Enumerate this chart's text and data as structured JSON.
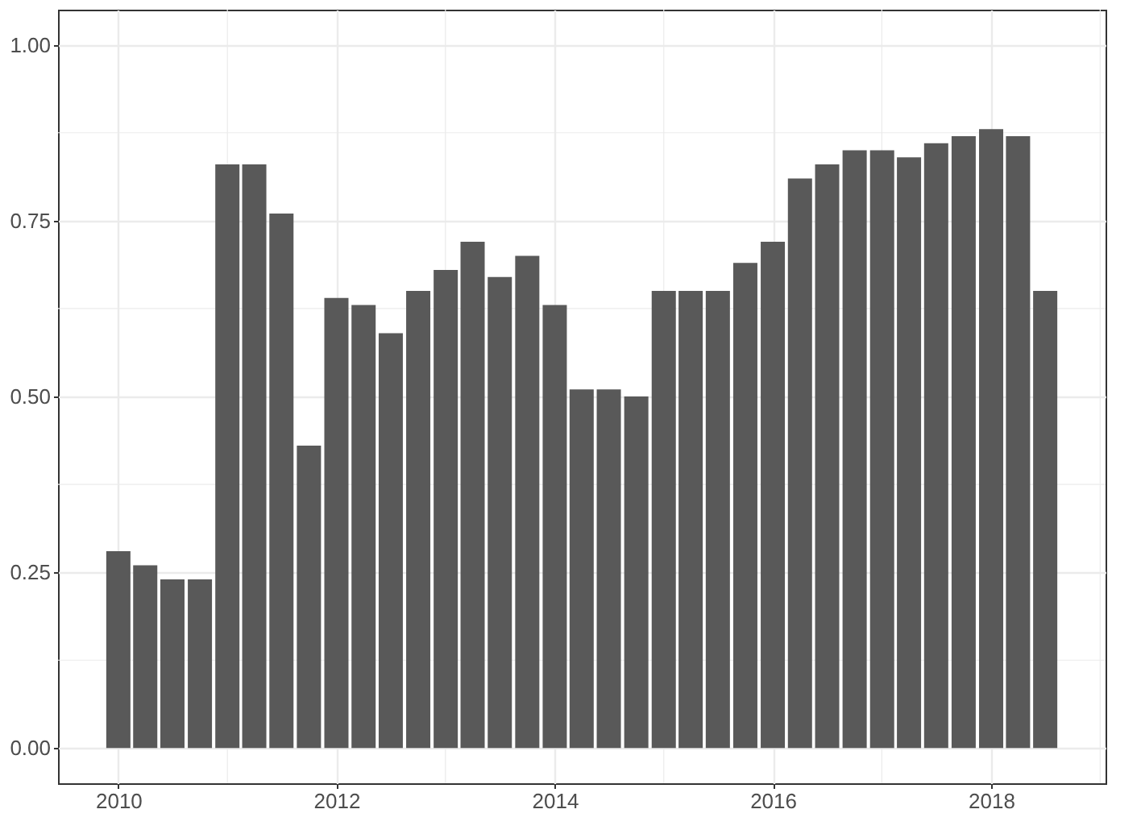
{
  "chart_data": {
    "type": "bar",
    "x": [
      "2010-01-01",
      "2010-04-01",
      "2010-07-01",
      "2010-10-01",
      "2011-01-01",
      "2011-04-01",
      "2011-07-01",
      "2011-10-01",
      "2012-01-01",
      "2012-04-01",
      "2012-07-01",
      "2012-10-01",
      "2013-01-01",
      "2013-04-01",
      "2013-07-01",
      "2013-10-01",
      "2014-01-01",
      "2014-04-01",
      "2014-07-01",
      "2014-10-01",
      "2015-01-01",
      "2015-04-01",
      "2015-07-01",
      "2015-10-01",
      "2016-01-01",
      "2016-04-01",
      "2016-07-01",
      "2016-10-01",
      "2017-01-01",
      "2017-04-01",
      "2017-07-01",
      "2017-10-01",
      "2018-01-01",
      "2018-04-01",
      "2018-07-01"
    ],
    "values": [
      0.28,
      0.26,
      0.24,
      0.24,
      0.83,
      0.83,
      0.76,
      0.43,
      0.64,
      0.63,
      0.59,
      0.65,
      0.68,
      0.72,
      0.67,
      0.7,
      0.63,
      0.51,
      0.51,
      0.5,
      0.65,
      0.65,
      0.65,
      0.69,
      0.72,
      0.81,
      0.83,
      0.85,
      0.85,
      0.84,
      0.86,
      0.87,
      0.88,
      0.87,
      0.65
    ],
    "color": "#595959",
    "xlim": [
      "2009-06-13",
      "2019-01-19"
    ],
    "xticks": [
      {
        "value": "2010-01-01",
        "label": "2010"
      },
      {
        "value": "2012-01-01",
        "label": "2012"
      },
      {
        "value": "2014-01-01",
        "label": "2014"
      },
      {
        "value": "2016-01-01",
        "label": "2016"
      },
      {
        "value": "2018-01-01",
        "label": "2018"
      }
    ],
    "ylim": [
      -0.05,
      1.05
    ],
    "yticks": [
      {
        "value": 0,
        "label": "0.00"
      },
      {
        "value": 0.25,
        "label": "0.25"
      },
      {
        "value": 0.5,
        "label": "0.50"
      },
      {
        "value": 0.75,
        "label": "0.75"
      },
      {
        "value": 1,
        "label": "1.00"
      }
    ],
    "grid": true
  }
}
